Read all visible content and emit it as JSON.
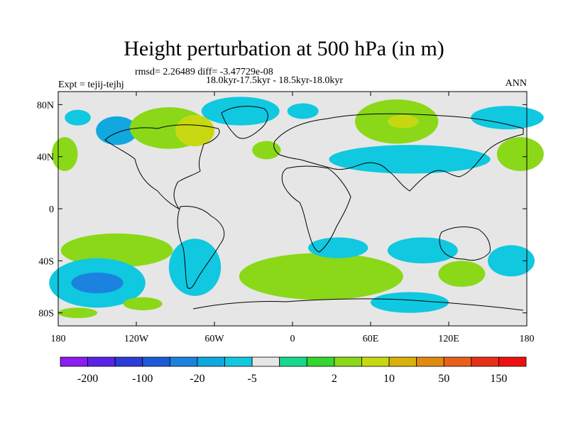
{
  "title": "Height perturbation at 500 hPa (in m)",
  "stats_line": "rmsd= 2.26489 diff= -3.47729e-08",
  "periods_line": "18.0kyr-17.5kyr - 18.5kyr-18.0kyr",
  "experiment_label": "Expt = tejij-tejhj",
  "season_label": "ANN",
  "map": {
    "lat_ticks": [
      {
        "value": 80,
        "label": "80N"
      },
      {
        "value": 40,
        "label": "40N"
      },
      {
        "value": 0,
        "label": "0"
      },
      {
        "value": -40,
        "label": "40S"
      },
      {
        "value": -80,
        "label": "80S"
      }
    ],
    "lon_ticks": [
      {
        "value": -180,
        "label": "180"
      },
      {
        "value": -120,
        "label": "120W"
      },
      {
        "value": -60,
        "label": "60W"
      },
      {
        "value": 0,
        "label": "0"
      },
      {
        "value": 60,
        "label": "60E"
      },
      {
        "value": 120,
        "label": "120E"
      },
      {
        "value": 180,
        "label": "180"
      }
    ],
    "lon_range": [
      -180,
      180
    ],
    "lat_range": [
      -90,
      90
    ],
    "background_color": "#e6e6e6",
    "land_outline_color": "#000000"
  },
  "colorbar": {
    "labels": [
      "-200",
      "-100",
      "-20",
      "-5",
      "2",
      "10",
      "50",
      "150"
    ],
    "colors": [
      "#8c1cf0",
      "#5a24e6",
      "#2c3cd8",
      "#1e5ad8",
      "#1c82e0",
      "#10a8de",
      "#10c8e0",
      "#e6e6e6",
      "#18d890",
      "#34d630",
      "#8ad818",
      "#c8d810",
      "#d8b208",
      "#e08a10",
      "#e8601c",
      "#e63018",
      "#ee1010"
    ]
  },
  "chart_data": {
    "type": "heatmap",
    "title": "Height perturbation at 500 hPa (in m)",
    "xlabel": "",
    "ylabel": "",
    "xlim": [
      -180,
      180
    ],
    "ylim": [
      -90,
      90
    ],
    "units": "m",
    "contour_levels": [
      -200,
      -100,
      -20,
      -5,
      2,
      10,
      50,
      150
    ],
    "anomaly_regions": [
      {
        "lon": -165,
        "lat": 70,
        "rlon": 10,
        "rlat": 6,
        "value": -8
      },
      {
        "lon": -135,
        "lat": 60,
        "rlon": 16,
        "rlat": 11,
        "value": -12
      },
      {
        "lon": -95,
        "lat": 62,
        "rlon": 30,
        "rlat": 16,
        "value": 8
      },
      {
        "lon": -75,
        "lat": 60,
        "rlon": 15,
        "rlat": 12,
        "value": 14
      },
      {
        "lon": -40,
        "lat": 75,
        "rlon": 30,
        "rlat": 11,
        "value": -8
      },
      {
        "lon": 8,
        "lat": 75,
        "rlon": 12,
        "rlat": 6,
        "value": -6
      },
      {
        "lon": -20,
        "lat": 45,
        "rlon": 11,
        "rlat": 7,
        "value": 6
      },
      {
        "lon": 80,
        "lat": 67,
        "rlon": 32,
        "rlat": 17,
        "value": 8
      },
      {
        "lon": 85,
        "lat": 67,
        "rlon": 12,
        "rlat": 5,
        "value": 14
      },
      {
        "lon": 165,
        "lat": 70,
        "rlon": 28,
        "rlat": 9,
        "value": -7
      },
      {
        "lon": 90,
        "lat": 38,
        "rlon": 62,
        "rlat": 11,
        "value": -8
      },
      {
        "lon": 175,
        "lat": 42,
        "rlon": 18,
        "rlat": 13,
        "value": 8
      },
      {
        "lon": -175,
        "lat": 42,
        "rlon": 10,
        "rlat": 13,
        "value": 8
      },
      {
        "lon": -135,
        "lat": -32,
        "rlon": 43,
        "rlat": 13,
        "value": 6
      },
      {
        "lon": -150,
        "lat": -57,
        "rlon": 37,
        "rlat": 19,
        "value": -10
      },
      {
        "lon": -150,
        "lat": -57,
        "rlon": 20,
        "rlat": 8,
        "value": -28
      },
      {
        "lon": -75,
        "lat": -45,
        "rlon": 20,
        "rlat": 22,
        "value": -7
      },
      {
        "lon": 22,
        "lat": -52,
        "rlon": 63,
        "rlat": 18,
        "value": 9
      },
      {
        "lon": 35,
        "lat": -30,
        "rlon": 23,
        "rlat": 8,
        "value": -7
      },
      {
        "lon": 100,
        "lat": -32,
        "rlon": 27,
        "rlat": 10,
        "value": -8
      },
      {
        "lon": 130,
        "lat": -50,
        "rlon": 18,
        "rlat": 10,
        "value": 7
      },
      {
        "lon": 168,
        "lat": -40,
        "rlon": 18,
        "rlat": 12,
        "value": -8
      },
      {
        "lon": -115,
        "lat": -73,
        "rlon": 15,
        "rlat": 5,
        "value": 6
      },
      {
        "lon": -165,
        "lat": -80,
        "rlon": 15,
        "rlat": 4,
        "value": 6
      },
      {
        "lon": 90,
        "lat": -72,
        "rlon": 30,
        "rlat": 8,
        "value": -6
      }
    ]
  }
}
